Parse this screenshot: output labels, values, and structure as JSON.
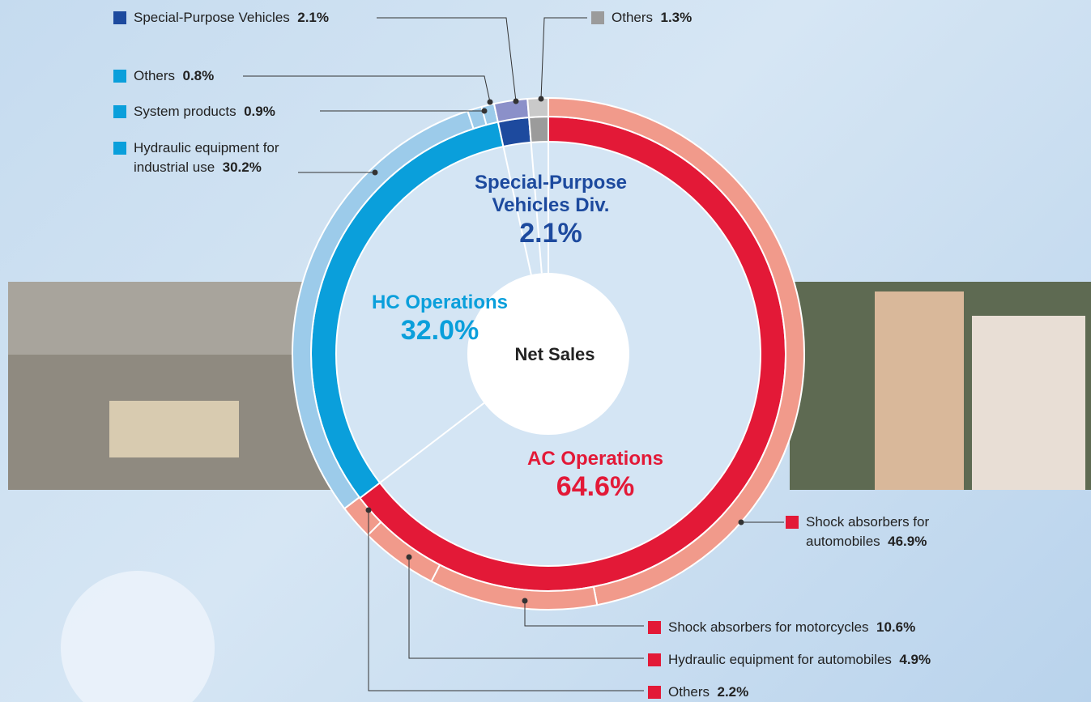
{
  "chart_data": {
    "type": "donut",
    "center_label": "Net Sales",
    "inner": {
      "categories": [
        "AC Operations",
        "HC Operations",
        "Special-Purpose Vehicles Div.",
        null
      ],
      "values": [
        64.6,
        32.0,
        2.1,
        1.3
      ],
      "value_labels": [
        "64.6%",
        "32.0%",
        "2.1%",
        null
      ],
      "colors": [
        "#e31937",
        "#0a9fdb",
        "#1d4a9e",
        "#9b9b9b"
      ]
    },
    "outer": {
      "categories": [
        "Shock absorbers for automobiles",
        "Shock absorbers for motorcycles",
        "Hydraulic equipment for automobiles",
        "Others",
        "Hydraulic equipment for industrial use",
        "System products",
        "Others",
        "Special-Purpose Vehicles",
        "Others"
      ],
      "values": [
        46.9,
        10.6,
        4.9,
        2.2,
        30.2,
        0.9,
        0.8,
        2.1,
        1.3
      ],
      "value_labels": [
        "46.9%",
        "10.6%",
        "4.9%",
        "2.2%",
        "30.2%",
        "0.9%",
        "0.8%",
        "2.1%",
        "1.3%"
      ],
      "colors": [
        "#f19a8b",
        "#f19a8b",
        "#f19a8b",
        "#f19a8b",
        "#9ccbea",
        "#9ccbea",
        "#9ccbea",
        "#8b90c9",
        "#c9c9c9"
      ],
      "legend_colors": [
        "#e31937",
        "#e31937",
        "#e31937",
        "#e31937",
        "#0a9fdb",
        "#0a9fdb",
        "#0a9fdb",
        "#1d4a9e",
        "#9b9b9b"
      ]
    }
  }
}
